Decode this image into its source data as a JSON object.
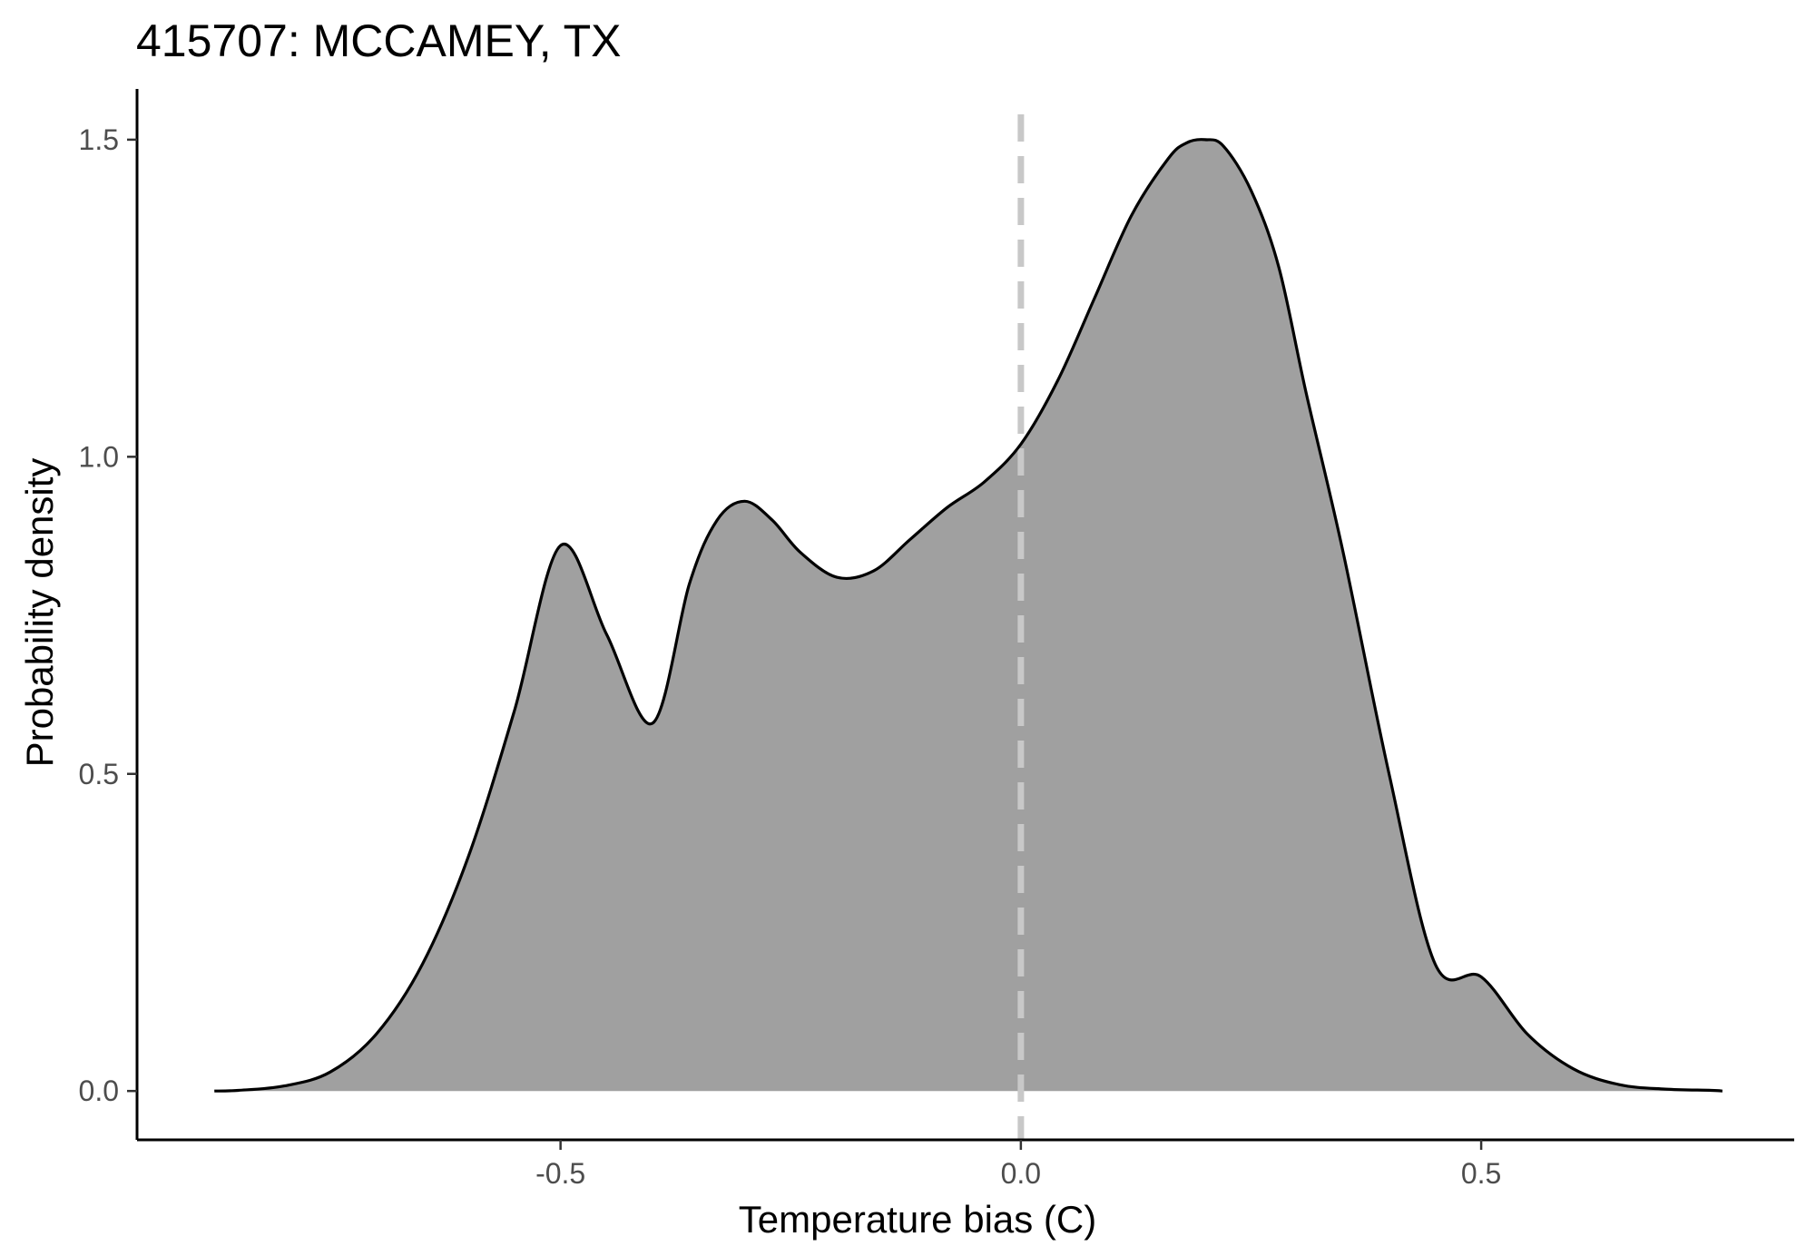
{
  "chart_data": {
    "type": "area",
    "title": "415707: MCCAMEY, TX",
    "xlabel": "Temperature bias (C)",
    "ylabel": "Probability density",
    "xlim": [
      -0.96,
      0.84
    ],
    "ylim": [
      -0.077,
      1.58
    ],
    "x_ticks": [
      -0.5,
      0.0,
      0.5
    ],
    "x_tick_labels": [
      "-0.5",
      "0.0",
      "0.5"
    ],
    "y_ticks": [
      0.0,
      0.5,
      1.0,
      1.5
    ],
    "y_tick_labels": [
      "0.0",
      "0.5",
      "1.0",
      "1.5"
    ],
    "reference_line": {
      "x": 0.0,
      "style": "dashed",
      "color": "#c8c8c8"
    },
    "grid": false,
    "fill_color": "#a0a0a0",
    "line_color": "#000000",
    "series": [
      {
        "x": [
          -0.876,
          -0.85,
          -0.8,
          -0.75,
          -0.7,
          -0.65,
          -0.6,
          -0.55,
          -0.5,
          -0.45,
          -0.4,
          -0.36,
          -0.33,
          -0.3,
          -0.27,
          -0.24,
          -0.2,
          -0.16,
          -0.12,
          -0.08,
          -0.04,
          0.0,
          0.04,
          0.08,
          0.12,
          0.16,
          0.18,
          0.2,
          0.22,
          0.25,
          0.28,
          0.31,
          0.35,
          0.4,
          0.45,
          0.5,
          0.55,
          0.6,
          0.65,
          0.7,
          0.75,
          0.762
        ],
        "y": [
          0.0,
          0.001,
          0.008,
          0.03,
          0.09,
          0.2,
          0.37,
          0.6,
          0.86,
          0.72,
          0.58,
          0.8,
          0.9,
          0.93,
          0.9,
          0.85,
          0.81,
          0.82,
          0.87,
          0.92,
          0.96,
          1.02,
          1.12,
          1.25,
          1.38,
          1.47,
          1.495,
          1.5,
          1.49,
          1.42,
          1.3,
          1.1,
          0.85,
          0.5,
          0.2,
          0.18,
          0.09,
          0.035,
          0.01,
          0.003,
          0.001,
          0.0
        ]
      }
    ]
  }
}
